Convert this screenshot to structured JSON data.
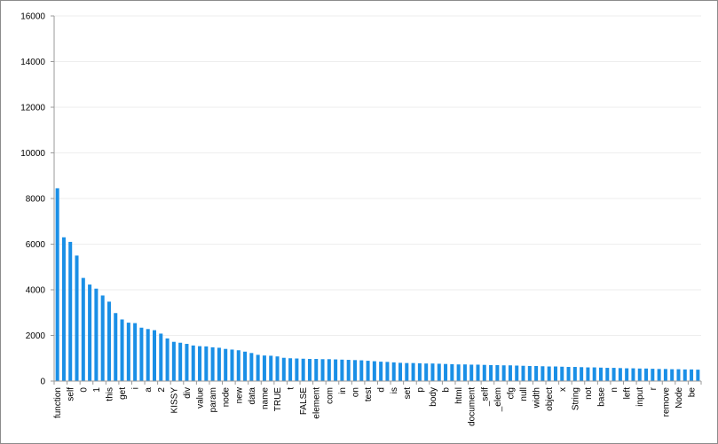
{
  "chart_data": {
    "type": "bar",
    "title": "",
    "xlabel": "",
    "ylabel": "",
    "ylim": [
      0,
      16000
    ],
    "yticks": [
      0,
      2000,
      4000,
      6000,
      8000,
      10000,
      12000,
      14000,
      16000
    ],
    "grid": true,
    "legend": "none",
    "bar_color": "#1a8fe6",
    "grid_color": "#eeeeee",
    "axis_color": "#9a9a9a",
    "labeled_every": 2,
    "categories": [
      "function",
      "",
      "self",
      "",
      "0",
      "",
      "1",
      "",
      "this",
      "",
      "get",
      "",
      "i",
      "",
      "a",
      "",
      "2",
      "",
      "KISSY",
      "",
      "div",
      "",
      "value",
      "",
      "param",
      "",
      "node",
      "",
      "new",
      "",
      "data",
      "",
      "name",
      "",
      "TRUE",
      "",
      "t",
      "",
      "FALSE",
      "",
      "element",
      "",
      "com",
      "",
      "in",
      "",
      "on",
      "",
      "test",
      "",
      "d",
      "",
      "is",
      "",
      "set",
      "",
      "p",
      "",
      "body",
      "",
      "b",
      "",
      "html",
      "",
      "document",
      "",
      "_self",
      "",
      "_elem",
      "",
      "cfg",
      "",
      "null",
      "",
      "width",
      "",
      "object",
      "",
      "x",
      "",
      "String",
      "",
      "not",
      "",
      "base",
      "",
      "n",
      "",
      "left",
      "",
      "input",
      "",
      "r",
      "",
      "remove",
      "",
      "Node",
      "",
      "be",
      ""
    ],
    "values": [
      8450,
      6300,
      6100,
      5500,
      4520,
      4230,
      4050,
      3750,
      3480,
      2980,
      2700,
      2560,
      2540,
      2340,
      2280,
      2230,
      2080,
      1870,
      1720,
      1680,
      1630,
      1560,
      1530,
      1520,
      1480,
      1460,
      1410,
      1380,
      1350,
      1290,
      1230,
      1150,
      1120,
      1110,
      1080,
      1020,
      1000,
      990,
      980,
      970,
      970,
      960,
      960,
      950,
      940,
      930,
      920,
      910,
      890,
      870,
      850,
      840,
      820,
      800,
      790,
      790,
      780,
      770,
      770,
      760,
      750,
      740,
      730,
      730,
      720,
      720,
      710,
      700,
      700,
      690,
      690,
      680,
      670,
      660,
      660,
      650,
      640,
      640,
      630,
      620,
      620,
      610,
      600,
      600,
      590,
      580,
      580,
      570,
      560,
      560,
      550,
      550,
      540,
      530,
      530,
      520,
      520,
      510,
      510,
      500
    ]
  }
}
